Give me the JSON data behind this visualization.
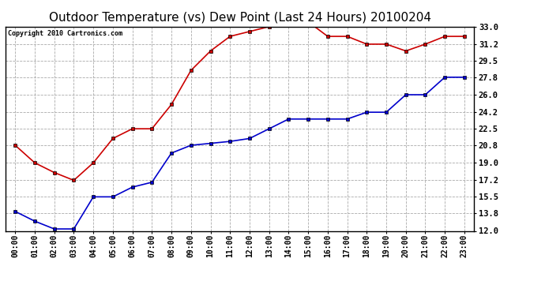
{
  "title": "Outdoor Temperature (vs) Dew Point (Last 24 Hours) 20100204",
  "copyright": "Copyright 2010 Cartronics.com",
  "x_labels": [
    "00:00",
    "01:00",
    "02:00",
    "03:00",
    "04:00",
    "05:00",
    "06:00",
    "07:00",
    "08:00",
    "09:00",
    "10:00",
    "11:00",
    "12:00",
    "13:00",
    "14:00",
    "15:00",
    "16:00",
    "17:00",
    "18:00",
    "19:00",
    "20:00",
    "21:00",
    "22:00",
    "23:00"
  ],
  "temp_values": [
    20.8,
    19.0,
    18.0,
    17.2,
    19.0,
    21.5,
    22.5,
    22.5,
    25.0,
    28.5,
    30.5,
    32.0,
    32.5,
    33.0,
    33.5,
    33.5,
    32.0,
    32.0,
    31.2,
    31.2,
    30.5,
    31.2,
    32.0,
    32.0
  ],
  "dew_values": [
    14.0,
    13.0,
    12.2,
    12.2,
    15.5,
    15.5,
    16.5,
    17.0,
    20.0,
    20.8,
    21.0,
    21.2,
    21.5,
    22.5,
    23.5,
    23.5,
    23.5,
    23.5,
    24.2,
    24.2,
    26.0,
    26.0,
    27.8,
    27.8
  ],
  "temp_color": "#cc0000",
  "dew_color": "#0000cc",
  "ylim_min": 12.0,
  "ylim_max": 33.0,
  "yticks": [
    12.0,
    13.8,
    15.5,
    17.2,
    19.0,
    20.8,
    22.5,
    24.2,
    26.0,
    27.8,
    29.5,
    31.2,
    33.0
  ],
  "bg_color": "#ffffff",
  "grid_color": "#aaaaaa",
  "title_fontsize": 11,
  "copyright_fontsize": 6,
  "tick_fontsize": 7,
  "ytick_fontsize": 7.5
}
